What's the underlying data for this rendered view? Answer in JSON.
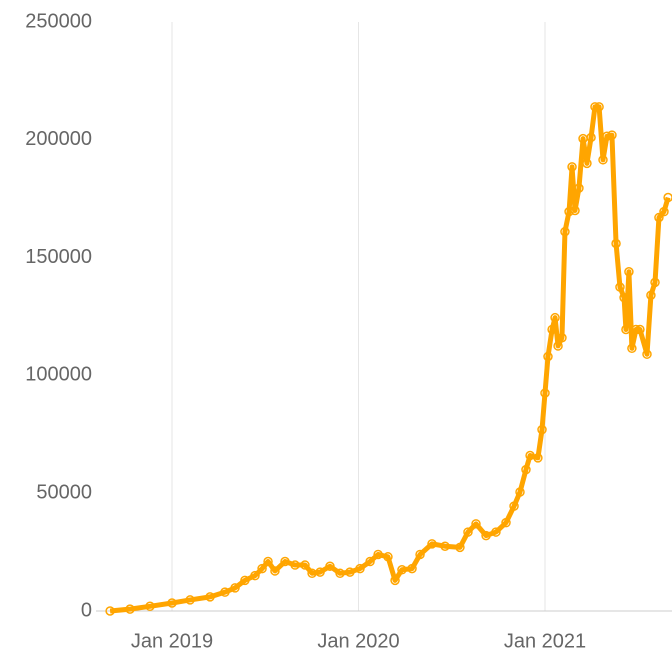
{
  "chart_data": {
    "type": "line",
    "x": [
      2018.668,
      2018.775,
      2018.882,
      2019.0,
      2019.097,
      2019.204,
      2019.284,
      2019.338,
      2019.391,
      2019.445,
      2019.483,
      2019.515,
      2019.552,
      2019.606,
      2019.66,
      2019.713,
      2019.751,
      2019.794,
      2019.847,
      2019.901,
      2019.954,
      2020.008,
      2020.062,
      2020.105,
      2020.158,
      2020.196,
      2020.233,
      2020.287,
      2020.33,
      2020.394,
      2020.464,
      2020.544,
      2020.587,
      2020.63,
      2020.684,
      2020.737,
      2020.791,
      2020.834,
      2020.866,
      2020.898,
      2020.92,
      2020.962,
      2020.984,
      2021.0,
      2021.016,
      2021.038,
      2021.054,
      2021.07,
      2021.091,
      2021.107,
      2021.129,
      2021.145,
      2021.161,
      2021.182,
      2021.204,
      2021.225,
      2021.247,
      2021.268,
      2021.29,
      2021.311,
      2021.332,
      2021.359,
      2021.381,
      2021.402,
      2021.424,
      2021.434,
      2021.45,
      2021.466,
      2021.488,
      2021.509,
      2021.547,
      2021.568,
      2021.59,
      2021.611,
      2021.638,
      2021.66
    ],
    "series": [
      {
        "color": "#ffa500",
        "values": [
          0,
          800,
          2000,
          3400,
          4700,
          6000,
          8000,
          9800,
          13000,
          15000,
          18000,
          21000,
          17000,
          21000,
          19500,
          19500,
          16000,
          16500,
          19000,
          16000,
          16500,
          18000,
          21000,
          24000,
          23000,
          13000,
          17500,
          18000,
          24000,
          28500,
          27500,
          27000,
          33500,
          37000,
          32000,
          33500,
          37500,
          44500,
          50500,
          60000,
          66000,
          65000,
          77000,
          92500,
          108000,
          119500,
          124500,
          112500,
          116000,
          161000,
          169500,
          188500,
          170000,
          179500,
          200500,
          190000,
          201000,
          214000,
          214000,
          191500,
          201500,
          202000,
          156000,
          137500,
          133000,
          119500,
          144000,
          111500,
          119500,
          119500,
          109000,
          134000,
          139500,
          167000,
          169500,
          175500
        ]
      }
    ],
    "xlim": [
      2018.571,
      2021.681
    ],
    "xticks": [
      {
        "value": 2019,
        "label": "Jan 2019"
      },
      {
        "value": 2020,
        "label": "Jan 2020"
      },
      {
        "value": 2021,
        "label": "Jan 2021"
      }
    ],
    "ylim": [
      0,
      250000
    ],
    "yticks": [
      0,
      50000,
      100000,
      150000,
      200000,
      250000
    ],
    "grid": true
  }
}
